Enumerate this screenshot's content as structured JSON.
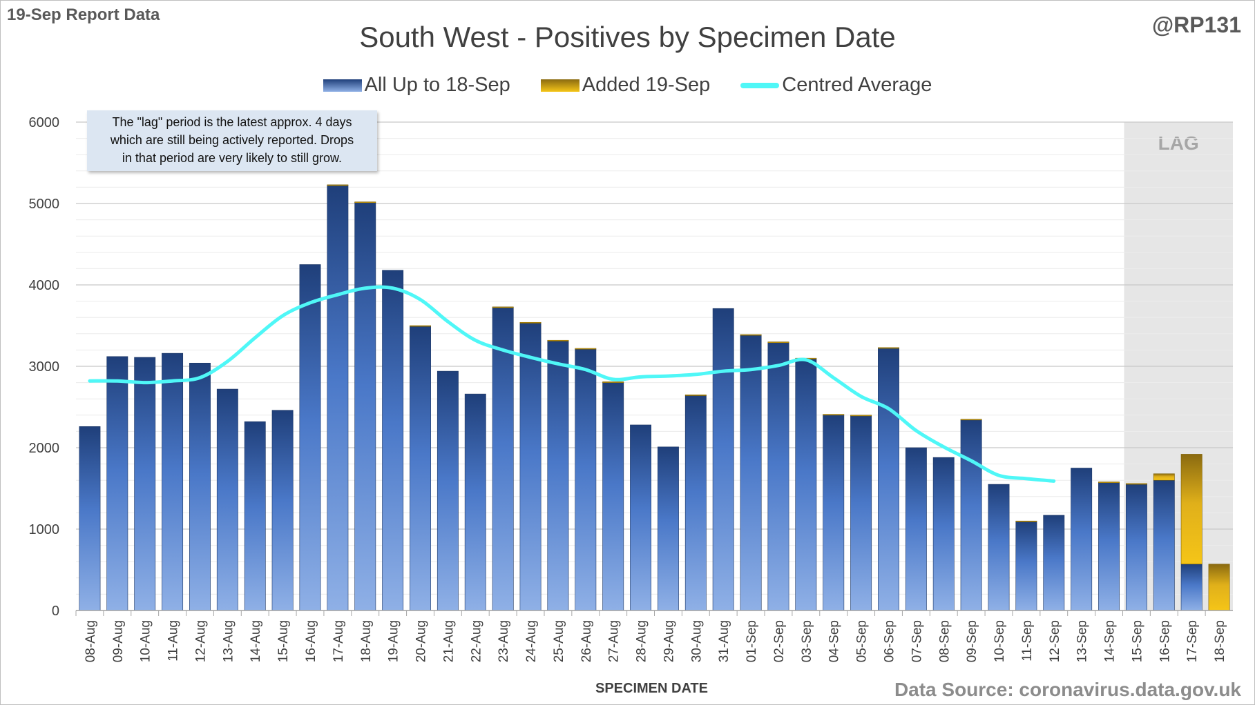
{
  "report_label": "19-Sep Report Data",
  "handle": "@RP131",
  "source": "Data Source: coronavirus.data.gov.uk",
  "note": {
    "lines": [
      "The \"lag\" period is the latest approx. 4 days",
      "which are still being actively reported. Drops",
      "in that period are very likely to still grow."
    ]
  },
  "colors": {
    "blue_dark": "#1f3f7a",
    "blue_light": "#8fb0e6",
    "gold_dark": "#8a6a10",
    "gold_light": "#f5c518",
    "average_line": "#4ff7f7",
    "lag_shade": "#e6e6e6",
    "gridline": "#d9d9d9"
  },
  "chart_data": {
    "type": "bar",
    "stacked": true,
    "title": "South West - Positives by Specimen Date",
    "xlabel": "SPECIMEN DATE",
    "ylabel": "",
    "ylim": [
      0,
      6000
    ],
    "yticks": [
      0,
      1000,
      2000,
      3000,
      4000,
      5000,
      6000
    ],
    "minor_grid_step": 200,
    "legend_position": "top-center",
    "categories": [
      "08-Aug",
      "09-Aug",
      "10-Aug",
      "11-Aug",
      "12-Aug",
      "13-Aug",
      "14-Aug",
      "15-Aug",
      "16-Aug",
      "17-Aug",
      "18-Aug",
      "19-Aug",
      "20-Aug",
      "21-Aug",
      "22-Aug",
      "23-Aug",
      "24-Aug",
      "25-Aug",
      "26-Aug",
      "27-Aug",
      "28-Aug",
      "29-Aug",
      "30-Aug",
      "31-Aug",
      "01-Sep",
      "02-Sep",
      "03-Sep",
      "04-Sep",
      "05-Sep",
      "06-Sep",
      "07-Sep",
      "08-Sep",
      "09-Sep",
      "10-Sep",
      "11-Sep",
      "12-Sep",
      "13-Sep",
      "14-Sep",
      "15-Sep",
      "16-Sep",
      "17-Sep",
      "18-Sep"
    ],
    "series": [
      {
        "name": "All Up to 18-Sep",
        "values": [
          2260,
          3120,
          3110,
          3160,
          3040,
          2720,
          2320,
          2460,
          4250,
          5220,
          5010,
          4180,
          3490,
          2940,
          2660,
          3720,
          3530,
          3310,
          3210,
          2800,
          2280,
          2010,
          2640,
          3710,
          3380,
          3290,
          3090,
          2400,
          2390,
          3220,
          2000,
          1880,
          2340,
          1550,
          1090,
          1170,
          1750,
          1570,
          1550,
          1600,
          570,
          0
        ]
      },
      {
        "name": "Added 19-Sep",
        "values": [
          0,
          0,
          0,
          0,
          0,
          0,
          0,
          0,
          0,
          10,
          10,
          0,
          10,
          0,
          0,
          10,
          10,
          10,
          10,
          10,
          0,
          0,
          10,
          0,
          10,
          10,
          10,
          10,
          10,
          10,
          0,
          0,
          10,
          0,
          10,
          0,
          0,
          10,
          10,
          80,
          1350,
          570
        ]
      },
      {
        "name": "Centred Average",
        "type": "line",
        "values": [
          2820,
          2820,
          2800,
          2820,
          2860,
          3060,
          3350,
          3620,
          3780,
          3880,
          3960,
          3960,
          3820,
          3550,
          3320,
          3200,
          3110,
          3030,
          2960,
          2840,
          2870,
          2880,
          2900,
          2940,
          2960,
          3010,
          3080,
          2860,
          2630,
          2480,
          2210,
          2010,
          1840,
          1660,
          1620,
          1590,
          null,
          null,
          null,
          null,
          null,
          null
        ]
      }
    ],
    "lag_region": {
      "label": "LAG",
      "start": "15-Sep",
      "end": "18-Sep"
    }
  }
}
